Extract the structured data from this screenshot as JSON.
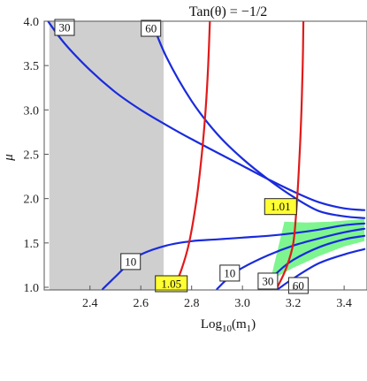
{
  "chart_data": {
    "type": "contour",
    "title": "Tan(θ) = −1/2",
    "xlabel_main": "Log",
    "xlabel_sub": "10",
    "xlabel_arg": "(m",
    "xlabel_argsub": "1",
    "xlabel_close": ")",
    "ylabel": "μ",
    "xlim": [
      2.22,
      3.49
    ],
    "ylim": [
      0.97,
      4.0
    ],
    "xticks": [
      2.4,
      2.6,
      2.8,
      3.0,
      3.2,
      3.4
    ],
    "xtick_labels": [
      "2.4",
      "2.6",
      "2.8",
      "3.0",
      "3.2",
      "3.4"
    ],
    "yticks": [
      1.0,
      1.5,
      2.0,
      2.5,
      3.0,
      3.5,
      4.0
    ],
    "ytick_labels": [
      "1.0",
      "1.5",
      "2.0",
      "2.5",
      "3.0",
      "3.5",
      "4.0"
    ],
    "excluded_region": {
      "x": [
        2.24,
        2.69
      ],
      "y": [
        0.97,
        4.0
      ],
      "color": "#cfcfcf"
    },
    "allowed_region": {
      "color": "#7ef58f",
      "upper": [
        [
          3.165,
          1.74
        ],
        [
          3.25,
          1.73
        ],
        [
          3.35,
          1.74
        ],
        [
          3.48,
          1.77
        ]
      ],
      "lower": [
        [
          3.11,
          1.08
        ],
        [
          3.2,
          1.22
        ],
        [
          3.3,
          1.35
        ],
        [
          3.4,
          1.46
        ],
        [
          3.48,
          1.52
        ]
      ]
    },
    "series": [
      {
        "kind": "blue",
        "value": "30",
        "points": [
          [
            2.23,
            4.02
          ],
          [
            2.3,
            3.75
          ],
          [
            2.4,
            3.45
          ],
          [
            2.5,
            3.2
          ],
          [
            2.6,
            3.0
          ],
          [
            2.7,
            2.83
          ],
          [
            2.8,
            2.67
          ],
          [
            2.9,
            2.52
          ],
          [
            3.0,
            2.37
          ],
          [
            3.1,
            2.22
          ],
          [
            3.2,
            2.08
          ],
          [
            3.3,
            1.96
          ],
          [
            3.4,
            1.89
          ],
          [
            3.48,
            1.87
          ]
        ]
      },
      {
        "kind": "blue",
        "value": "60",
        "points": [
          [
            2.64,
            4.02
          ],
          [
            2.7,
            3.6
          ],
          [
            2.8,
            3.1
          ],
          [
            2.9,
            2.73
          ],
          [
            3.0,
            2.45
          ],
          [
            3.1,
            2.22
          ],
          [
            3.2,
            2.02
          ],
          [
            3.3,
            1.86
          ],
          [
            3.4,
            1.8
          ],
          [
            3.48,
            1.78
          ]
        ]
      },
      {
        "kind": "blue",
        "value": "10",
        "points": [
          [
            2.45,
            0.98
          ],
          [
            2.5,
            1.12
          ],
          [
            2.55,
            1.26
          ],
          [
            2.6,
            1.37
          ],
          [
            2.7,
            1.47
          ],
          [
            2.8,
            1.52
          ],
          [
            2.9,
            1.54
          ],
          [
            3.0,
            1.56
          ],
          [
            3.1,
            1.58
          ],
          [
            3.2,
            1.61
          ],
          [
            3.3,
            1.65
          ],
          [
            3.4,
            1.7
          ],
          [
            3.48,
            1.72
          ]
        ]
      },
      {
        "kind": "blue",
        "value": "10",
        "points": [
          [
            2.9,
            0.98
          ],
          [
            2.95,
            1.12
          ],
          [
            3.0,
            1.22
          ],
          [
            3.1,
            1.36
          ],
          [
            3.2,
            1.47
          ],
          [
            3.3,
            1.55
          ],
          [
            3.4,
            1.62
          ],
          [
            3.48,
            1.66
          ]
        ]
      },
      {
        "kind": "blue",
        "value": "30",
        "points": [
          [
            3.08,
            1.01
          ],
          [
            3.15,
            1.2
          ],
          [
            3.2,
            1.31
          ],
          [
            3.3,
            1.45
          ],
          [
            3.4,
            1.54
          ],
          [
            3.48,
            1.58
          ]
        ]
      },
      {
        "kind": "blue",
        "value": "60",
        "points": [
          [
            3.14,
            0.98
          ],
          [
            3.2,
            1.1
          ],
          [
            3.3,
            1.27
          ],
          [
            3.4,
            1.37
          ],
          [
            3.48,
            1.43
          ]
        ]
      },
      {
        "kind": "red",
        "value": "1.05",
        "points": [
          [
            2.73,
            0.99
          ],
          [
            2.76,
            1.2
          ],
          [
            2.79,
            1.5
          ],
          [
            2.82,
            2.0
          ],
          [
            2.84,
            2.5
          ],
          [
            2.855,
            3.0
          ],
          [
            2.865,
            3.5
          ],
          [
            2.872,
            4.02
          ]
        ]
      },
      {
        "kind": "red",
        "value": "1.01",
        "points": [
          [
            3.135,
            0.99
          ],
          [
            3.17,
            1.2
          ],
          [
            3.2,
            1.5
          ],
          [
            3.215,
            2.0
          ],
          [
            3.225,
            2.5
          ],
          [
            3.232,
            3.0
          ],
          [
            3.237,
            3.5
          ],
          [
            3.24,
            4.02
          ]
        ]
      }
    ],
    "labels": [
      {
        "text": "30",
        "x": 2.3,
        "y": 3.93,
        "fill": "#ffffff"
      },
      {
        "text": "60",
        "x": 2.64,
        "y": 3.92,
        "fill": "#ffffff"
      },
      {
        "text": "10",
        "x": 2.56,
        "y": 1.29,
        "fill": "#ffffff"
      },
      {
        "text": "10",
        "x": 2.95,
        "y": 1.16,
        "fill": "#ffffff"
      },
      {
        "text": "30",
        "x": 3.1,
        "y": 1.07,
        "fill": "#ffffff"
      },
      {
        "text": "60",
        "x": 3.22,
        "y": 1.02,
        "fill": "#ffffff"
      },
      {
        "text": "1.05",
        "x": 2.72,
        "y": 1.04,
        "fill": "#ffff33"
      },
      {
        "text": "1.01",
        "x": 3.15,
        "y": 1.91,
        "fill": "#ffff33"
      }
    ],
    "colors": {
      "blue": "#1a2bdc",
      "red": "#e11a1a",
      "grid": "#bdbdbd"
    }
  }
}
